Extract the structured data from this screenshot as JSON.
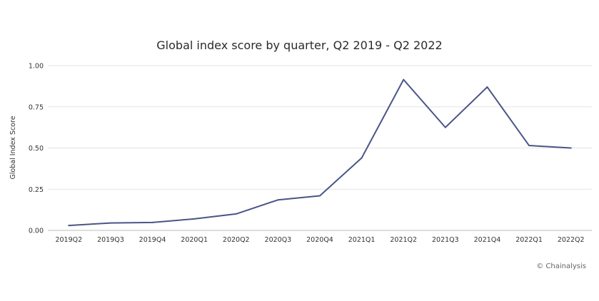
{
  "chart_data": {
    "type": "line",
    "title": "Global index score by quarter, Q2 2019 - Q2 2022",
    "xlabel": "",
    "ylabel": "Global Index Score",
    "categories": [
      "2019Q2",
      "2019Q3",
      "2019Q4",
      "2020Q1",
      "2020Q2",
      "2020Q3",
      "2020Q4",
      "2021Q1",
      "2021Q2",
      "2021Q3",
      "2021Q4",
      "2022Q1",
      "2022Q2"
    ],
    "series": [
      {
        "name": "Global index score",
        "values": [
          0.03,
          0.045,
          0.048,
          0.07,
          0.1,
          0.185,
          0.21,
          0.44,
          0.915,
          0.625,
          0.87,
          0.515,
          0.5
        ]
      }
    ],
    "ylim": [
      0,
      1
    ],
    "yticks": [
      "0.00",
      "0.25",
      "0.50",
      "0.75",
      "1.00"
    ],
    "ytick_values": [
      0,
      0.25,
      0.5,
      0.75,
      1.0
    ],
    "grid": true,
    "line_color": "#4a5587"
  },
  "credit": "© Chainalysis"
}
